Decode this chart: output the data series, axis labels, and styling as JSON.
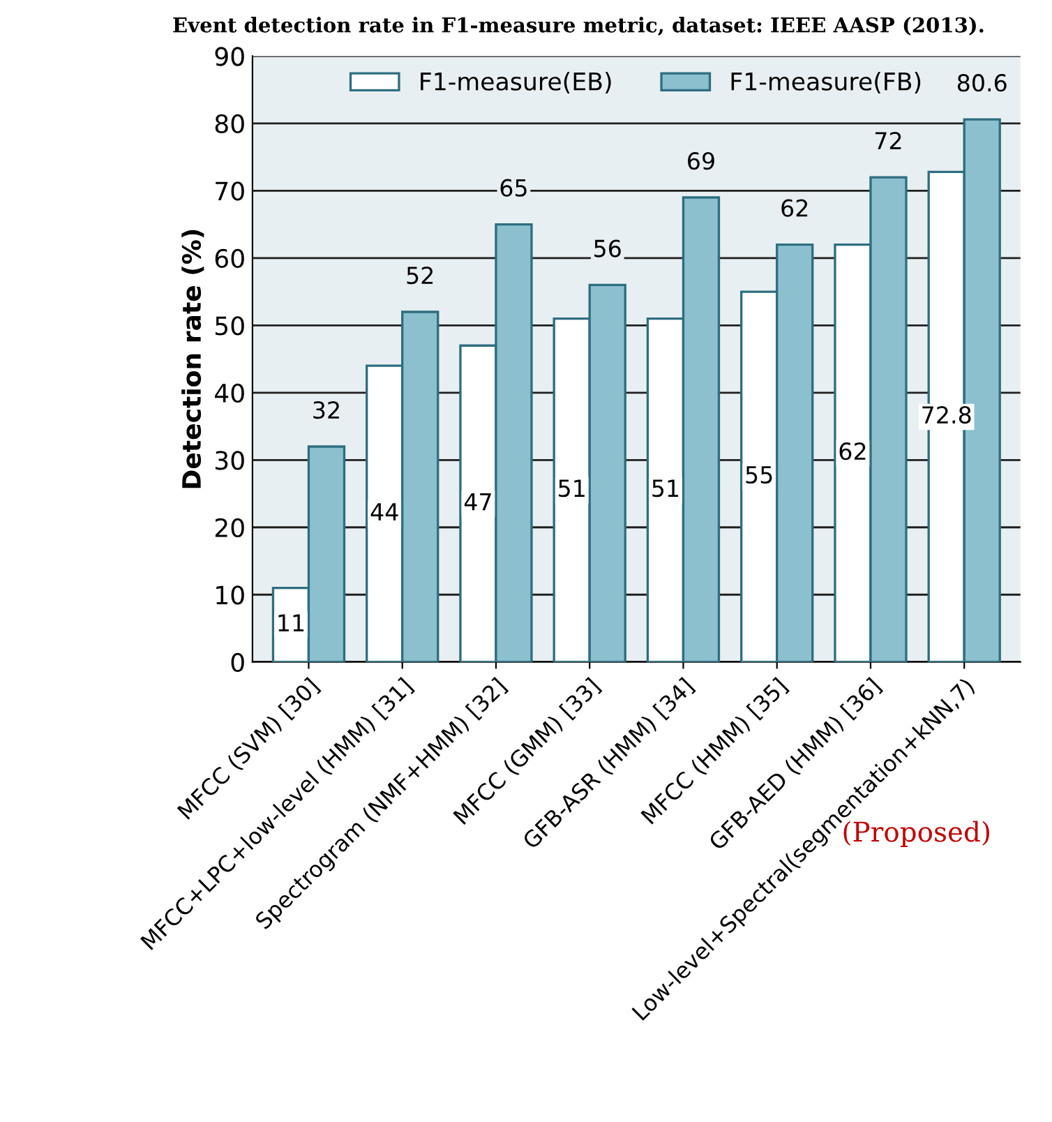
{
  "chart_data": {
    "type": "bar",
    "title": "Event detection rate in F1-measure metric, dataset: IEEE AASP (2013).",
    "ylabel": "Detection rate (%)",
    "categories": [
      "MFCC (SVM) [30]",
      "MFCC+LPC+low-level (HMM) [31]",
      "Spectrogram (NMF+HMM) [32]",
      "MFCC (GMM) [33]",
      "GFB-ASR (HMM) [34]",
      "MFCC (HMM) [35]",
      "GFB-AED (HMM) [36]",
      "Low-level+Spectral(segmentation+kNN,7)"
    ],
    "series": [
      {
        "name": "F1-measure(EB)",
        "color": "#ffffff",
        "values": [
          11,
          44,
          47,
          51,
          51,
          55,
          62,
          72.8
        ]
      },
      {
        "name": "F1-measure(FB)",
        "color": "#8cc0cf",
        "values": [
          32,
          52,
          65,
          56,
          69,
          62,
          72,
          80.6
        ]
      }
    ],
    "ylim": [
      0,
      90
    ],
    "yticks": [
      0,
      10,
      20,
      30,
      40,
      50,
      60,
      70,
      80,
      90
    ],
    "grid": "y",
    "legend": "top",
    "data_labels": true,
    "annotations": [
      "(Proposed)"
    ]
  }
}
